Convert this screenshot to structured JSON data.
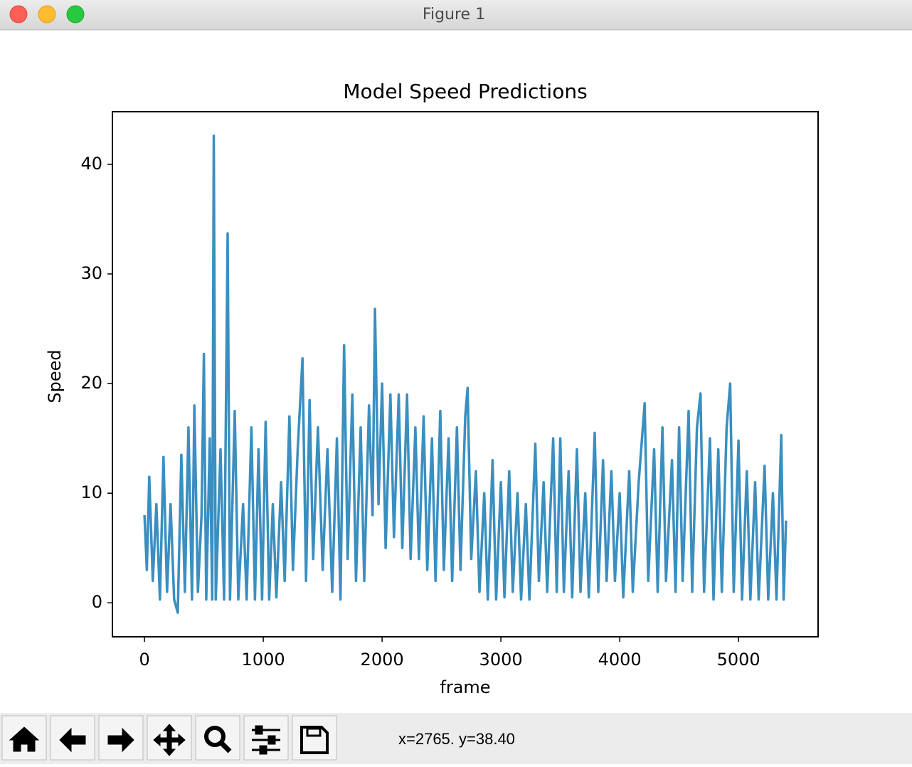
{
  "window": {
    "title": "Figure 1"
  },
  "status": "x=2765. y=38.40",
  "chart_data": {
    "type": "line",
    "title": "Model Speed Predictions",
    "x_label": "frame",
    "y_label": "Speed",
    "color": "#3a8fc0",
    "x": [
      0,
      20,
      40,
      70,
      100,
      130,
      160,
      190,
      220,
      250,
      280,
      310,
      340,
      370,
      400,
      420,
      450,
      480,
      500,
      520,
      550,
      570,
      583,
      600,
      640,
      670,
      700,
      720,
      760,
      790,
      830,
      860,
      900,
      930,
      960,
      990,
      1020,
      1050,
      1080,
      1110,
      1150,
      1180,
      1220,
      1250,
      1290,
      1330,
      1360,
      1390,
      1420,
      1460,
      1500,
      1540,
      1580,
      1620,
      1650,
      1680,
      1710,
      1750,
      1780,
      1820,
      1850,
      1890,
      1920,
      1940,
      1970,
      2000,
      2030,
      2070,
      2100,
      2140,
      2170,
      2210,
      2240,
      2280,
      2310,
      2350,
      2380,
      2420,
      2450,
      2490,
      2520,
      2560,
      2590,
      2630,
      2660,
      2700,
      2720,
      2750,
      2790,
      2820,
      2860,
      2890,
      2930,
      2960,
      3000,
      3030,
      3070,
      3100,
      3140,
      3170,
      3210,
      3240,
      3290,
      3320,
      3360,
      3390,
      3440,
      3470,
      3500,
      3530,
      3570,
      3600,
      3640,
      3670,
      3710,
      3740,
      3790,
      3820,
      3860,
      3890,
      3930,
      3960,
      4000,
      4030,
      4080,
      4110,
      4160,
      4210,
      4240,
      4290,
      4320,
      4360,
      4390,
      4440,
      4470,
      4500,
      4530,
      4580,
      4610,
      4650,
      4680,
      4710,
      4760,
      4790,
      4830,
      4860,
      4900,
      4930,
      4960,
      5000,
      5030,
      5070,
      5100,
      5140,
      5170,
      5220,
      5250,
      5290,
      5320,
      5360,
      5380,
      5400
    ],
    "values": [
      8,
      3,
      11.5,
      2,
      9,
      0.3,
      13.3,
      1,
      9,
      0.3,
      -0.9,
      13.5,
      1,
      16,
      0.3,
      18,
      1,
      8,
      22.7,
      0.3,
      15,
      0.3,
      42.6,
      0.3,
      14,
      0.3,
      33.7,
      0.3,
      17.5,
      0.3,
      9,
      0.3,
      16,
      0.3,
      14,
      0.3,
      16.5,
      0.3,
      9,
      0.5,
      11,
      2,
      17,
      3,
      14,
      22.3,
      2,
      18.5,
      4,
      16,
      3,
      14,
      1,
      15,
      0.3,
      23.5,
      4,
      19,
      2,
      16,
      2,
      18,
      8,
      26.8,
      9,
      20,
      5,
      19,
      6,
      19,
      5,
      19,
      4,
      16,
      4,
      17,
      3,
      15,
      2,
      17.5,
      3,
      15,
      2,
      16,
      3,
      17,
      19.6,
      4,
      12,
      1,
      10,
      0.3,
      13,
      0.3,
      11,
      0.5,
      12,
      1,
      10,
      0.3,
      9,
      0.3,
      14.5,
      2,
      11,
      1,
      15,
      1,
      15,
      1,
      12,
      0.5,
      14,
      1,
      10,
      0.5,
      15.5,
      1,
      13,
      2,
      12,
      2,
      10,
      0.5,
      12,
      1,
      11,
      18.2,
      2,
      14,
      1,
      16,
      2,
      13,
      1,
      16,
      2,
      17.5,
      1,
      16,
      19.1,
      1,
      15,
      0.3,
      14,
      1,
      16,
      20,
      1,
      14.8,
      0.3,
      12,
      0.3,
      11,
      0.3,
      12.5,
      0.3,
      10,
      0.3,
      15.3,
      0.3,
      7.5
    ],
    "xlim": [
      -270,
      5670
    ],
    "ylim": [
      -3.1,
      44.8
    ],
    "xticks": [
      0,
      1000,
      2000,
      3000,
      4000,
      5000
    ],
    "yticks": [
      0,
      10,
      20,
      30,
      40
    ]
  }
}
